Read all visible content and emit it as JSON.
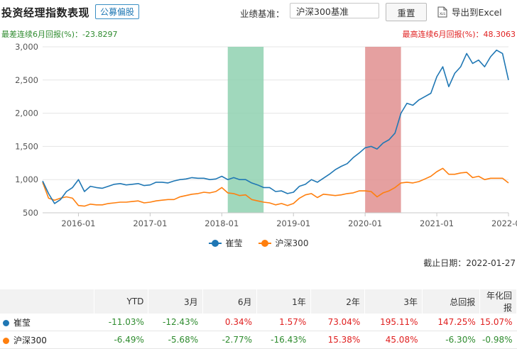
{
  "header": {
    "title": "投资经理指数表现",
    "tag": "公募偏股",
    "benchmark_label": "业绩基准：",
    "benchmark_value": "沪深300基准",
    "reset_label": "重置",
    "export_label": "导出到Excel",
    "export_icon_text": "XLS"
  },
  "stats": {
    "worst": "最差连续6月回报(%)：-23.8297",
    "best": "最高连续6月回报(%)：48.3063"
  },
  "colors": {
    "manager": "#1f77b4",
    "index": "#ff7f0e",
    "green_band": "#8fd1b0",
    "red_band": "#e08f8f",
    "positive": "#e02020",
    "negative": "#2e8b2e"
  },
  "chart_data": {
    "type": "line",
    "x": [
      "2015-07",
      "2015-08",
      "2015-09",
      "2015-10",
      "2015-11",
      "2015-12",
      "2016-01",
      "2016-02",
      "2016-03",
      "2016-04",
      "2016-05",
      "2016-06",
      "2016-07",
      "2016-08",
      "2016-09",
      "2016-10",
      "2016-11",
      "2016-12",
      "2017-01",
      "2017-02",
      "2017-03",
      "2017-04",
      "2017-05",
      "2017-06",
      "2017-07",
      "2017-08",
      "2017-09",
      "2017-10",
      "2017-11",
      "2017-12",
      "2018-01",
      "2018-02",
      "2018-03",
      "2018-04",
      "2018-05",
      "2018-06",
      "2018-07",
      "2018-08",
      "2018-09",
      "2018-10",
      "2018-11",
      "2018-12",
      "2019-01",
      "2019-02",
      "2019-03",
      "2019-04",
      "2019-05",
      "2019-06",
      "2019-07",
      "2019-08",
      "2019-09",
      "2019-10",
      "2019-11",
      "2019-12",
      "2020-01",
      "2020-02",
      "2020-03",
      "2020-04",
      "2020-05",
      "2020-06",
      "2020-07",
      "2020-08",
      "2020-09",
      "2020-10",
      "2020-11",
      "2020-12",
      "2021-01",
      "2021-02",
      "2021-03",
      "2021-04",
      "2021-05",
      "2021-06",
      "2021-07",
      "2021-08",
      "2021-09",
      "2021-10",
      "2021-11",
      "2021-12",
      "2022-01"
    ],
    "series": [
      {
        "name": "崔莹",
        "values": [
          980,
          790,
          640,
          700,
          820,
          880,
          1000,
          820,
          900,
          880,
          870,
          900,
          930,
          940,
          920,
          930,
          940,
          910,
          920,
          960,
          960,
          950,
          980,
          1000,
          1010,
          1030,
          1020,
          1020,
          1000,
          1010,
          1050,
          1000,
          1030,
          1000,
          1000,
          950,
          920,
          880,
          880,
          820,
          830,
          790,
          810,
          900,
          930,
          1000,
          960,
          1020,
          1080,
          1150,
          1200,
          1240,
          1330,
          1400,
          1480,
          1500,
          1460,
          1550,
          1600,
          1700,
          2000,
          2150,
          2120,
          2200,
          2250,
          2300,
          2550,
          2700,
          2400,
          2600,
          2700,
          2900,
          2750,
          2800,
          2700,
          2850,
          2950,
          2900,
          2500
        ]
      },
      {
        "name": "沪深300",
        "values": [
          960,
          720,
          690,
          720,
          740,
          720,
          610,
          600,
          630,
          620,
          620,
          640,
          650,
          660,
          660,
          670,
          680,
          650,
          660,
          680,
          690,
          700,
          700,
          740,
          760,
          780,
          790,
          810,
          800,
          820,
          880,
          800,
          790,
          760,
          770,
          700,
          680,
          660,
          650,
          620,
          640,
          610,
          640,
          720,
          770,
          790,
          730,
          780,
          770,
          760,
          770,
          790,
          800,
          830,
          830,
          820,
          740,
          800,
          830,
          880,
          950,
          960,
          950,
          970,
          1010,
          1050,
          1120,
          1170,
          1080,
          1080,
          1100,
          1110,
          1030,
          1050,
          1000,
          1020,
          1020,
          1020,
          950
        ]
      }
    ],
    "xticks": [
      "2016-01",
      "2017-01",
      "2018-01",
      "2019-01",
      "2020-01",
      "2021-01",
      "2022-01"
    ],
    "yticks": [
      "500",
      "1,000",
      "1,500",
      "2,000",
      "2,500",
      "3,000"
    ],
    "ylim": [
      500,
      3000
    ],
    "highlight_min_6m": [
      "2018-02",
      "2018-08"
    ],
    "highlight_max_6m": [
      "2020-01",
      "2020-07"
    ]
  },
  "legend": [
    {
      "label": "崔莹"
    },
    {
      "label": "沪深300"
    }
  ],
  "deadline": "截止日期：2022-01-27",
  "table": {
    "headers": [
      "",
      "YTD",
      "3月",
      "6月",
      "1年",
      "2年",
      "3年",
      "总回报",
      "年化回报"
    ],
    "rows": [
      {
        "name": "崔莹",
        "cells": [
          "-11.03%",
          "-12.43%",
          "0.34%",
          "1.57%",
          "73.04%",
          "195.11%",
          "147.25%",
          "15.07%"
        ]
      },
      {
        "name": "沪深300",
        "cells": [
          "-6.49%",
          "-5.68%",
          "-2.77%",
          "-16.43%",
          "15.38%",
          "45.08%",
          "-6.30%",
          "-0.98%"
        ]
      }
    ]
  }
}
